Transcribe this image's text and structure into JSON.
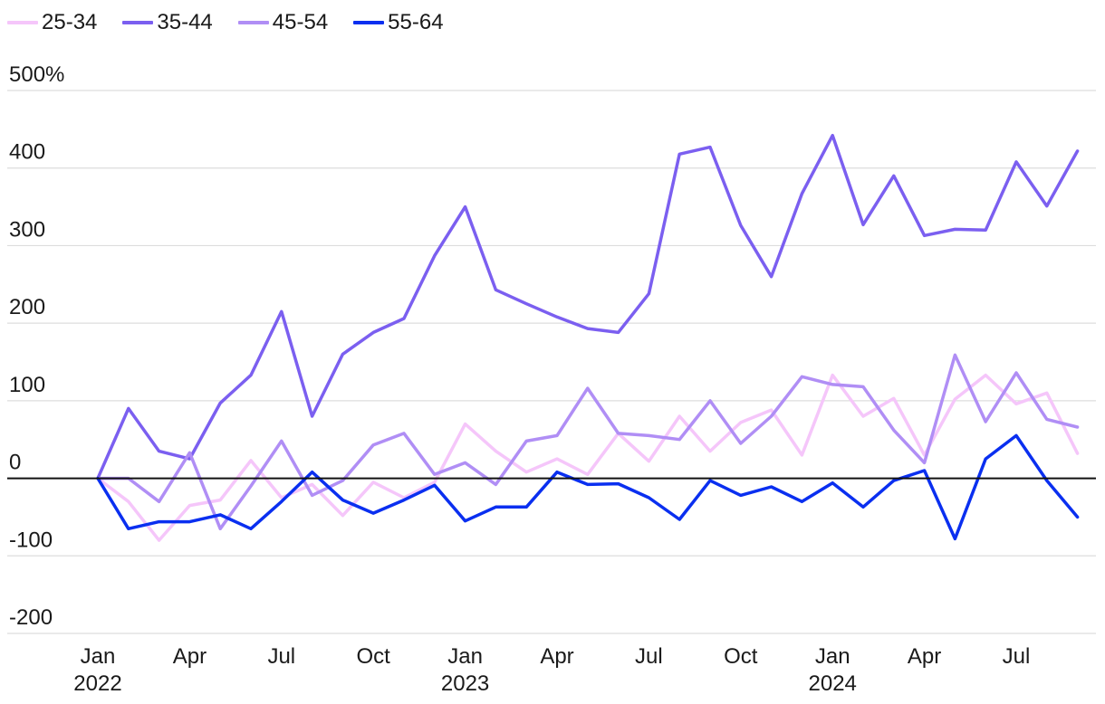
{
  "chart_data": {
    "type": "line",
    "title": "",
    "xlabel": "",
    "ylabel": "",
    "y_unit_suffix": "%",
    "ylim": [
      -200,
      500
    ],
    "y_ticks": [
      -200,
      -100,
      0,
      100,
      200,
      300,
      400,
      500
    ],
    "y_tick_labels": [
      "-200",
      "-100",
      "0",
      "100",
      "200",
      "300",
      "400",
      "500%"
    ],
    "grid": true,
    "legend_position": "top-left",
    "x": [
      "2022-01",
      "2022-02",
      "2022-03",
      "2022-04",
      "2022-05",
      "2022-06",
      "2022-07",
      "2022-08",
      "2022-09",
      "2022-10",
      "2022-11",
      "2022-12",
      "2023-01",
      "2023-02",
      "2023-03",
      "2023-04",
      "2023-05",
      "2023-06",
      "2023-07",
      "2023-08",
      "2023-09",
      "2023-10",
      "2023-11",
      "2023-12",
      "2024-01",
      "2024-02",
      "2024-03",
      "2024-04",
      "2024-05",
      "2024-06",
      "2024-07",
      "2024-08",
      "2024-09"
    ],
    "x_ticks": [
      {
        "x": "2022-01",
        "label": "Jan",
        "year": "2022"
      },
      {
        "x": "2022-04",
        "label": "Apr",
        "year": ""
      },
      {
        "x": "2022-07",
        "label": "Jul",
        "year": ""
      },
      {
        "x": "2022-10",
        "label": "Oct",
        "year": ""
      },
      {
        "x": "2023-01",
        "label": "Jan",
        "year": "2023"
      },
      {
        "x": "2023-04",
        "label": "Apr",
        "year": ""
      },
      {
        "x": "2023-07",
        "label": "Jul",
        "year": ""
      },
      {
        "x": "2023-10",
        "label": "Oct",
        "year": ""
      },
      {
        "x": "2024-01",
        "label": "Jan",
        "year": "2024"
      },
      {
        "x": "2024-04",
        "label": "Apr",
        "year": ""
      },
      {
        "x": "2024-07",
        "label": "Jul",
        "year": ""
      }
    ],
    "series": [
      {
        "name": "25-34",
        "color": "#f5c6fa",
        "values": [
          0,
          -30,
          -80,
          -35,
          -28,
          23,
          -25,
          -8,
          -48,
          -5,
          -25,
          -5,
          70,
          35,
          8,
          25,
          5,
          58,
          22,
          80,
          35,
          72,
          88,
          30,
          133,
          80,
          103,
          30,
          102,
          133,
          96,
          110,
          32
        ]
      },
      {
        "name": "35-44",
        "color": "#7b5ff0",
        "values": [
          0,
          90,
          35,
          25,
          97,
          133,
          215,
          80,
          160,
          188,
          206,
          287,
          350,
          243,
          225,
          208,
          193,
          188,
          238,
          418,
          427,
          326,
          260,
          367,
          442,
          327,
          390,
          313,
          321,
          320,
          408,
          351,
          422
        ]
      },
      {
        "name": "45-54",
        "color": "#b08ef5",
        "values": [
          0,
          0,
          -30,
          33,
          -65,
          -10,
          48,
          -22,
          -3,
          43,
          58,
          5,
          20,
          -8,
          48,
          55,
          116,
          58,
          55,
          50,
          100,
          45,
          80,
          131,
          121,
          118,
          62,
          20,
          159,
          73,
          136,
          76,
          66
        ]
      },
      {
        "name": "55-64",
        "color": "#0a2ff0",
        "values": [
          0,
          -65,
          -56,
          -56,
          -47,
          -65,
          -30,
          8,
          -28,
          -45,
          -28,
          -9,
          -55,
          -37,
          -37,
          8,
          -8,
          -7,
          -25,
          -53,
          -3,
          -22,
          -11,
          -30,
          -6,
          -37,
          -3,
          10,
          -78,
          25,
          55,
          -3,
          -50
        ]
      }
    ]
  }
}
